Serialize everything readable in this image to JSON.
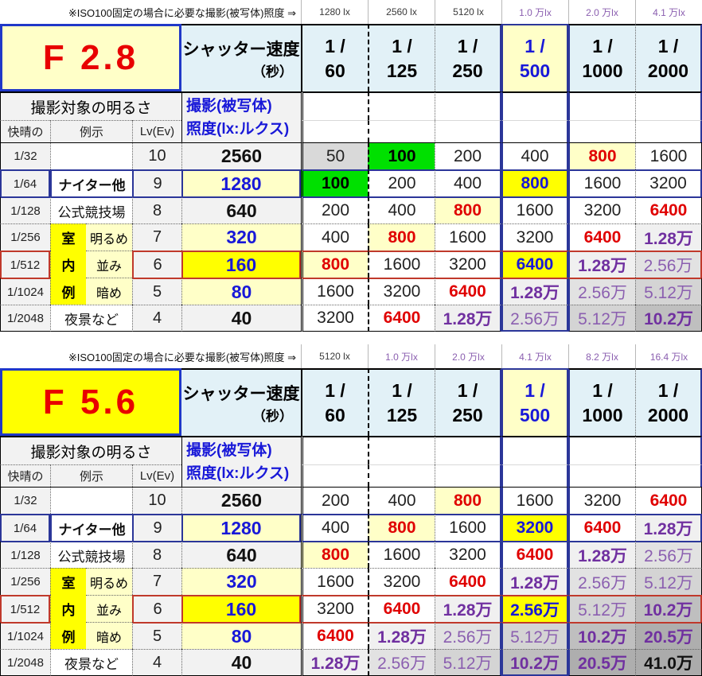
{
  "colors": {
    "red_text": "#e00000",
    "blue_text": "#1818d8",
    "purple_text": "#7030a0",
    "purple_light_text": "#8b5fb0",
    "green_highlight": "#00e000",
    "bright_yellow": "#ffff00",
    "light_yellow": "#ffffc8",
    "light_cyan": "#e2f1f7",
    "navy_border": "#2b3699",
    "red_border": "#c0392b",
    "gray_cell": "#d9d9d9"
  },
  "tables": [
    {
      "note": "※ISO100固定の場合に必要な撮影(被写体)照度 ⇒",
      "aperture": "F 2.8",
      "aperture_bg": "bg-ly",
      "lux_labels": [
        {
          "t": "1280 lx",
          "purple": false
        },
        {
          "t": "2560 lx",
          "purple": false
        },
        {
          "t": "5120 lx",
          "purple": false
        },
        {
          "t": "1.0 万lx",
          "purple": true
        },
        {
          "t": "2.0 万lx",
          "purple": true
        },
        {
          "t": "4.1 万lx",
          "purple": true
        }
      ],
      "shutter": {
        "title": "シャッター速度",
        "unit": "（秒）",
        "numerator": "1 /",
        "cols": [
          {
            "den": "60",
            "hl": false
          },
          {
            "den": "125",
            "hl": false
          },
          {
            "den": "250",
            "hl": false
          },
          {
            "den": "500",
            "hl": true
          },
          {
            "den": "1000",
            "hl": false
          },
          {
            "den": "2000",
            "hl": false
          }
        ]
      },
      "left_header": {
        "brightness": "撮影対象の明るさ",
        "clear_sky": "快晴の",
        "example": "例示",
        "lv": "Lv(Ev)",
        "illum1": "撮影(被写体)",
        "illum2": "照度(lx:ルクス)"
      },
      "rows": [
        {
          "fraction": "1/32",
          "example": {
            "type": "empty"
          },
          "lv": "10",
          "lux": "2560",
          "lux_style": "plain",
          "cells": [
            {
              "v": "50",
              "s": "g"
            },
            {
              "v": "100",
              "s": "grn"
            },
            {
              "v": "200",
              "s": ""
            },
            {
              "v": "400",
              "s": ""
            },
            {
              "v": "800",
              "s": "ry"
            },
            {
              "v": "1600",
              "s": ""
            }
          ]
        },
        {
          "fraction": "1/64",
          "example": {
            "type": "full",
            "text": "ナイター他",
            "bold": true
          },
          "lv": "9",
          "lux": "1280",
          "lux_style": "ly",
          "cells": [
            {
              "v": "100",
              "s": "grn"
            },
            {
              "v": "200",
              "s": ""
            },
            {
              "v": "400",
              "s": ""
            },
            {
              "v": "800",
              "s": "by"
            },
            {
              "v": "1600",
              "s": ""
            },
            {
              "v": "3200",
              "s": ""
            }
          ]
        },
        {
          "fraction": "1/128",
          "example": {
            "type": "full",
            "text": "公式競技場",
            "bold": false
          },
          "lv": "8",
          "lux": "640",
          "lux_style": "plain",
          "cells": [
            {
              "v": "200",
              "s": ""
            },
            {
              "v": "400",
              "s": ""
            },
            {
              "v": "800",
              "s": "ry"
            },
            {
              "v": "1600",
              "s": ""
            },
            {
              "v": "3200",
              "s": ""
            },
            {
              "v": "6400",
              "s": "r"
            }
          ]
        },
        {
          "fraction": "1/256",
          "example": {
            "type": "split",
            "k": "室",
            "label": "明るめ"
          },
          "lv": "7",
          "lux": "320",
          "lux_style": "ly",
          "cells": [
            {
              "v": "400",
              "s": ""
            },
            {
              "v": "800",
              "s": "ry"
            },
            {
              "v": "1600",
              "s": ""
            },
            {
              "v": "3200",
              "s": ""
            },
            {
              "v": "6400",
              "s": "r"
            },
            {
              "v": "1.28万",
              "s": "m1"
            }
          ]
        },
        {
          "fraction": "1/512",
          "example": {
            "type": "split",
            "k": "内",
            "label": "並み"
          },
          "lv": "6",
          "lux": "160",
          "lux_style": "by",
          "cells": [
            {
              "v": "800",
              "s": "ry"
            },
            {
              "v": "1600",
              "s": ""
            },
            {
              "v": "3200",
              "s": ""
            },
            {
              "v": "6400",
              "s": "by"
            },
            {
              "v": "1.28万",
              "s": "m1"
            },
            {
              "v": "2.56万",
              "s": "m2"
            }
          ]
        },
        {
          "fraction": "1/1024",
          "example": {
            "type": "split",
            "k": "例",
            "label": "暗め"
          },
          "lv": "5",
          "lux": "80",
          "lux_style": "ly",
          "cells": [
            {
              "v": "1600",
              "s": ""
            },
            {
              "v": "3200",
              "s": ""
            },
            {
              "v": "6400",
              "s": "r"
            },
            {
              "v": "1.28万",
              "s": "m1"
            },
            {
              "v": "2.56万",
              "s": "m2"
            },
            {
              "v": "5.12万",
              "s": "m3"
            }
          ]
        },
        {
          "fraction": "1/2048",
          "example": {
            "type": "full",
            "text": "夜景など",
            "bold": false
          },
          "lv": "4",
          "lux": "40",
          "lux_style": "plain",
          "cells": [
            {
              "v": "3200",
              "s": ""
            },
            {
              "v": "6400",
              "s": "r"
            },
            {
              "v": "1.28万",
              "s": "m1"
            },
            {
              "v": "2.56万",
              "s": "m2"
            },
            {
              "v": "5.12万",
              "s": "m3"
            },
            {
              "v": "10.2万",
              "s": "m4"
            }
          ]
        }
      ]
    },
    {
      "note": "※ISO100固定の場合に必要な撮影(被写体)照度 ⇒",
      "aperture": "F 5.6",
      "aperture_bg": "bg-by",
      "lux_labels": [
        {
          "t": "5120 lx",
          "purple": false
        },
        {
          "t": "1.0 万lx",
          "purple": true
        },
        {
          "t": "2.0 万lx",
          "purple": true
        },
        {
          "t": "4.1 万lx",
          "purple": true
        },
        {
          "t": "8.2 万lx",
          "purple": true
        },
        {
          "t": "16.4 万lx",
          "purple": true
        }
      ],
      "shutter": {
        "title": "シャッター速度",
        "unit": "（秒）",
        "numerator": "1 /",
        "cols": [
          {
            "den": "60",
            "hl": false
          },
          {
            "den": "125",
            "hl": false
          },
          {
            "den": "250",
            "hl": false
          },
          {
            "den": "500",
            "hl": true
          },
          {
            "den": "1000",
            "hl": false
          },
          {
            "den": "2000",
            "hl": false
          }
        ]
      },
      "left_header": {
        "brightness": "撮影対象の明るさ",
        "clear_sky": "快晴の",
        "example": "例示",
        "lv": "Lv(Ev)",
        "illum1": "撮影(被写体)",
        "illum2": "照度(lx:ルクス)"
      },
      "rows": [
        {
          "fraction": "1/32",
          "example": {
            "type": "empty"
          },
          "lv": "10",
          "lux": "2560",
          "lux_style": "plain",
          "cells": [
            {
              "v": "200",
              "s": ""
            },
            {
              "v": "400",
              "s": ""
            },
            {
              "v": "800",
              "s": "ry"
            },
            {
              "v": "1600",
              "s": ""
            },
            {
              "v": "3200",
              "s": ""
            },
            {
              "v": "6400",
              "s": "r"
            }
          ]
        },
        {
          "fraction": "1/64",
          "example": {
            "type": "full",
            "text": "ナイター他",
            "bold": true
          },
          "lv": "9",
          "lux": "1280",
          "lux_style": "ly",
          "cells": [
            {
              "v": "400",
              "s": ""
            },
            {
              "v": "800",
              "s": "ry"
            },
            {
              "v": "1600",
              "s": ""
            },
            {
              "v": "3200",
              "s": "by"
            },
            {
              "v": "6400",
              "s": "r"
            },
            {
              "v": "1.28万",
              "s": "m1"
            }
          ]
        },
        {
          "fraction": "1/128",
          "example": {
            "type": "full",
            "text": "公式競技場",
            "bold": false
          },
          "lv": "8",
          "lux": "640",
          "lux_style": "plain",
          "cells": [
            {
              "v": "800",
              "s": "ry"
            },
            {
              "v": "1600",
              "s": ""
            },
            {
              "v": "3200",
              "s": ""
            },
            {
              "v": "6400",
              "s": "r"
            },
            {
              "v": "1.28万",
              "s": "m1"
            },
            {
              "v": "2.56万",
              "s": "m2"
            }
          ]
        },
        {
          "fraction": "1/256",
          "example": {
            "type": "split",
            "k": "室",
            "label": "明るめ"
          },
          "lv": "7",
          "lux": "320",
          "lux_style": "ly",
          "cells": [
            {
              "v": "1600",
              "s": ""
            },
            {
              "v": "3200",
              "s": ""
            },
            {
              "v": "6400",
              "s": "r"
            },
            {
              "v": "1.28万",
              "s": "m1"
            },
            {
              "v": "2.56万",
              "s": "m2"
            },
            {
              "v": "5.12万",
              "s": "m3"
            }
          ]
        },
        {
          "fraction": "1/512",
          "example": {
            "type": "split",
            "k": "内",
            "label": "並み"
          },
          "lv": "6",
          "lux": "160",
          "lux_style": "by",
          "cells": [
            {
              "v": "3200",
              "s": ""
            },
            {
              "v": "6400",
              "s": "r"
            },
            {
              "v": "1.28万",
              "s": "m1"
            },
            {
              "v": "2.56万",
              "s": "by"
            },
            {
              "v": "5.12万",
              "s": "m3"
            },
            {
              "v": "10.2万",
              "s": "m4"
            }
          ]
        },
        {
          "fraction": "1/1024",
          "example": {
            "type": "split",
            "k": "例",
            "label": "暗め"
          },
          "lv": "5",
          "lux": "80",
          "lux_style": "ly",
          "cells": [
            {
              "v": "6400",
              "s": "r"
            },
            {
              "v": "1.28万",
              "s": "m1"
            },
            {
              "v": "2.56万",
              "s": "m2"
            },
            {
              "v": "5.12万",
              "s": "m3"
            },
            {
              "v": "10.2万",
              "s": "m4"
            },
            {
              "v": "20.5万",
              "s": "m5"
            }
          ]
        },
        {
          "fraction": "1/2048",
          "example": {
            "type": "full",
            "text": "夜景など",
            "bold": false
          },
          "lv": "4",
          "lux": "40",
          "lux_style": "plain",
          "cells": [
            {
              "v": "1.28万",
              "s": "m1"
            },
            {
              "v": "2.56万",
              "s": "m2"
            },
            {
              "v": "5.12万",
              "s": "m3"
            },
            {
              "v": "10.2万",
              "s": "m4"
            },
            {
              "v": "20.5万",
              "s": "m5"
            },
            {
              "v": "41.0万",
              "s": "m6"
            }
          ]
        }
      ]
    }
  ]
}
